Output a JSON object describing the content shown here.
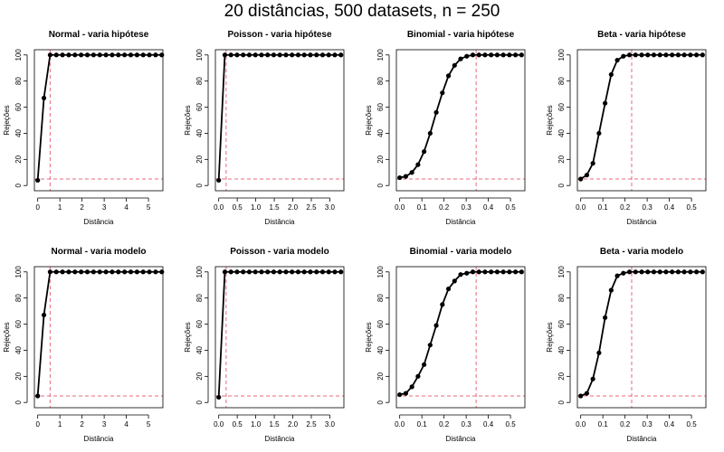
{
  "figure": {
    "title": "20 distâncias, 500 datasets, n = 250"
  },
  "chart_data": [
    {
      "type": "line",
      "title": "Normal - varia hipótese",
      "xlabel": "Distância",
      "ylabel": "Rejeções",
      "xlim": [
        -0.15,
        5.65
      ],
      "ylim": [
        -4,
        104
      ],
      "xticks": [
        0,
        1,
        2,
        3,
        4,
        5
      ],
      "yticks": [
        0,
        20,
        40,
        60,
        80,
        100
      ],
      "grid": false,
      "x": [
        0.0,
        0.28,
        0.56,
        0.84,
        1.12,
        1.4,
        1.68,
        1.96,
        2.24,
        2.52,
        2.8,
        3.08,
        3.36,
        3.64,
        3.92,
        4.2,
        4.48,
        4.76,
        5.04,
        5.32,
        5.6
      ],
      "series": [
        {
          "values": [
            4,
            67,
            100,
            100,
            100,
            100,
            100,
            100,
            100,
            100,
            100,
            100,
            100,
            100,
            100,
            100,
            100,
            100,
            100,
            100,
            100
          ],
          "color": "#000000"
        }
      ],
      "reference": {
        "x": 0.56,
        "y": 5,
        "color": "#e8697e"
      }
    },
    {
      "type": "line",
      "title": "Poisson - varia hipótese",
      "xlabel": "Distância",
      "ylabel": "Rejeções",
      "xlim": [
        -0.09,
        3.38
      ],
      "ylim": [
        -4,
        104
      ],
      "xticks": [
        0.0,
        0.5,
        1.0,
        1.5,
        2.0,
        2.5,
        3.0
      ],
      "xtick_labels": [
        "0.0",
        "0.5",
        "1.0",
        "1.5",
        "2.0",
        "2.5",
        "3.0"
      ],
      "yticks": [
        0,
        20,
        40,
        60,
        80,
        100
      ],
      "grid": false,
      "x": [
        0.0,
        0.165,
        0.33,
        0.495,
        0.66,
        0.825,
        0.99,
        1.155,
        1.32,
        1.485,
        1.65,
        1.815,
        1.98,
        2.145,
        2.31,
        2.475,
        2.64,
        2.805,
        2.97,
        3.135,
        3.3
      ],
      "series": [
        {
          "values": [
            4,
            100,
            100,
            100,
            100,
            100,
            100,
            100,
            100,
            100,
            100,
            100,
            100,
            100,
            100,
            100,
            100,
            100,
            100,
            100,
            100
          ],
          "color": "#000000"
        }
      ],
      "reference": {
        "x": 0.2,
        "y": 5,
        "color": "#e8697e"
      }
    },
    {
      "type": "line",
      "title": "Binomial - varia hipótese",
      "xlabel": "Distância",
      "ylabel": "Rejeções",
      "xlim": [
        -0.015,
        0.565
      ],
      "ylim": [
        -4,
        104
      ],
      "xticks": [
        0.0,
        0.1,
        0.2,
        0.3,
        0.4,
        0.5
      ],
      "xtick_labels": [
        "0.0",
        "0.1",
        "0.2",
        "0.3",
        "0.4",
        "0.5"
      ],
      "yticks": [
        0,
        20,
        40,
        60,
        80,
        100
      ],
      "grid": false,
      "x": [
        0.0,
        0.0275,
        0.055,
        0.0825,
        0.11,
        0.1375,
        0.165,
        0.1925,
        0.22,
        0.2475,
        0.275,
        0.3025,
        0.33,
        0.3575,
        0.385,
        0.4125,
        0.44,
        0.4675,
        0.495,
        0.5225,
        0.55
      ],
      "series": [
        {
          "values": [
            6,
            7,
            10,
            16,
            26,
            40,
            56,
            71,
            84,
            92,
            97,
            99,
            100,
            100,
            100,
            100,
            100,
            100,
            100,
            100,
            100
          ],
          "color": "#000000"
        }
      ],
      "reference": {
        "x": 0.345,
        "y": 5,
        "color": "#e8697e"
      }
    },
    {
      "type": "line",
      "title": "Beta - varia hipótese",
      "xlabel": "Distância",
      "ylabel": "Rejeções",
      "xlim": [
        -0.015,
        0.565
      ],
      "ylim": [
        -4,
        104
      ],
      "xticks": [
        0.0,
        0.1,
        0.2,
        0.3,
        0.4,
        0.5
      ],
      "xtick_labels": [
        "0.0",
        "0.1",
        "0.2",
        "0.3",
        "0.4",
        "0.5"
      ],
      "yticks": [
        0,
        20,
        40,
        60,
        80,
        100
      ],
      "grid": false,
      "x": [
        0.0,
        0.0275,
        0.055,
        0.0825,
        0.11,
        0.1375,
        0.165,
        0.1925,
        0.22,
        0.2475,
        0.275,
        0.3025,
        0.33,
        0.3575,
        0.385,
        0.4125,
        0.44,
        0.4675,
        0.495,
        0.5225,
        0.55
      ],
      "series": [
        {
          "values": [
            5,
            8,
            17,
            40,
            63,
            85,
            96,
            99,
            100,
            100,
            100,
            100,
            100,
            100,
            100,
            100,
            100,
            100,
            100,
            100,
            100
          ],
          "color": "#000000"
        }
      ],
      "reference": {
        "x": 0.23,
        "y": 5,
        "color": "#e8697e"
      }
    },
    {
      "type": "line",
      "title": "Normal - varia modelo",
      "xlabel": "Distância",
      "ylabel": "Rejeções",
      "xlim": [
        -0.15,
        5.65
      ],
      "ylim": [
        -4,
        104
      ],
      "xticks": [
        0,
        1,
        2,
        3,
        4,
        5
      ],
      "yticks": [
        0,
        20,
        40,
        60,
        80,
        100
      ],
      "grid": false,
      "x": [
        0.0,
        0.28,
        0.56,
        0.84,
        1.12,
        1.4,
        1.68,
        1.96,
        2.24,
        2.52,
        2.8,
        3.08,
        3.36,
        3.64,
        3.92,
        4.2,
        4.48,
        4.76,
        5.04,
        5.32,
        5.6
      ],
      "series": [
        {
          "values": [
            5,
            67,
            100,
            100,
            100,
            100,
            100,
            100,
            100,
            100,
            100,
            100,
            100,
            100,
            100,
            100,
            100,
            100,
            100,
            100,
            100
          ],
          "color": "#000000"
        }
      ],
      "reference": {
        "x": 0.56,
        "y": 5,
        "color": "#e8697e"
      }
    },
    {
      "type": "line",
      "title": "Poisson - varia modelo",
      "xlabel": "Distância",
      "ylabel": "Rejeções",
      "xlim": [
        -0.09,
        3.38
      ],
      "ylim": [
        -4,
        104
      ],
      "xticks": [
        0.0,
        0.5,
        1.0,
        1.5,
        2.0,
        2.5,
        3.0
      ],
      "xtick_labels": [
        "0.0",
        "0.5",
        "1.0",
        "1.5",
        "2.0",
        "2.5",
        "3.0"
      ],
      "yticks": [
        0,
        20,
        40,
        60,
        80,
        100
      ],
      "grid": false,
      "x": [
        0.0,
        0.165,
        0.33,
        0.495,
        0.66,
        0.825,
        0.99,
        1.155,
        1.32,
        1.485,
        1.65,
        1.815,
        1.98,
        2.145,
        2.31,
        2.475,
        2.64,
        2.805,
        2.97,
        3.135,
        3.3
      ],
      "series": [
        {
          "values": [
            4,
            100,
            100,
            100,
            100,
            100,
            100,
            100,
            100,
            100,
            100,
            100,
            100,
            100,
            100,
            100,
            100,
            100,
            100,
            100,
            100
          ],
          "color": "#000000"
        }
      ],
      "reference": {
        "x": 0.2,
        "y": 5,
        "color": "#e8697e"
      }
    },
    {
      "type": "line",
      "title": "Binomial - varia modelo",
      "xlabel": "Distância",
      "ylabel": "Rejeções",
      "xlim": [
        -0.015,
        0.565
      ],
      "ylim": [
        -4,
        104
      ],
      "xticks": [
        0.0,
        0.1,
        0.2,
        0.3,
        0.4,
        0.5
      ],
      "xtick_labels": [
        "0.0",
        "0.1",
        "0.2",
        "0.3",
        "0.4",
        "0.5"
      ],
      "yticks": [
        0,
        20,
        40,
        60,
        80,
        100
      ],
      "grid": false,
      "x": [
        0.0,
        0.0275,
        0.055,
        0.0825,
        0.11,
        0.1375,
        0.165,
        0.1925,
        0.22,
        0.2475,
        0.275,
        0.3025,
        0.33,
        0.3575,
        0.385,
        0.4125,
        0.44,
        0.4675,
        0.495,
        0.5225,
        0.55
      ],
      "series": [
        {
          "values": [
            6,
            7,
            12,
            20,
            29,
            44,
            59,
            75,
            87,
            93,
            98,
            99,
            100,
            100,
            100,
            100,
            100,
            100,
            100,
            100,
            100
          ],
          "color": "#000000"
        }
      ],
      "reference": {
        "x": 0.345,
        "y": 5,
        "color": "#e8697e"
      }
    },
    {
      "type": "line",
      "title": "Beta - varia modelo",
      "xlabel": "Distância",
      "ylabel": "Rejeções",
      "xlim": [
        -0.015,
        0.565
      ],
      "ylim": [
        -4,
        104
      ],
      "xticks": [
        0.0,
        0.1,
        0.2,
        0.3,
        0.4,
        0.5
      ],
      "xtick_labels": [
        "0.0",
        "0.1",
        "0.2",
        "0.3",
        "0.4",
        "0.5"
      ],
      "yticks": [
        0,
        20,
        40,
        60,
        80,
        100
      ],
      "grid": false,
      "x": [
        0.0,
        0.0275,
        0.055,
        0.0825,
        0.11,
        0.1375,
        0.165,
        0.1925,
        0.22,
        0.2475,
        0.275,
        0.3025,
        0.33,
        0.3575,
        0.385,
        0.4125,
        0.44,
        0.4675,
        0.495,
        0.5225,
        0.55
      ],
      "series": [
        {
          "values": [
            5,
            7,
            18,
            38,
            65,
            86,
            97,
            99,
            100,
            100,
            100,
            100,
            100,
            100,
            100,
            100,
            100,
            100,
            100,
            100,
            100
          ],
          "color": "#000000"
        }
      ],
      "reference": {
        "x": 0.23,
        "y": 5,
        "color": "#e8697e"
      }
    }
  ]
}
